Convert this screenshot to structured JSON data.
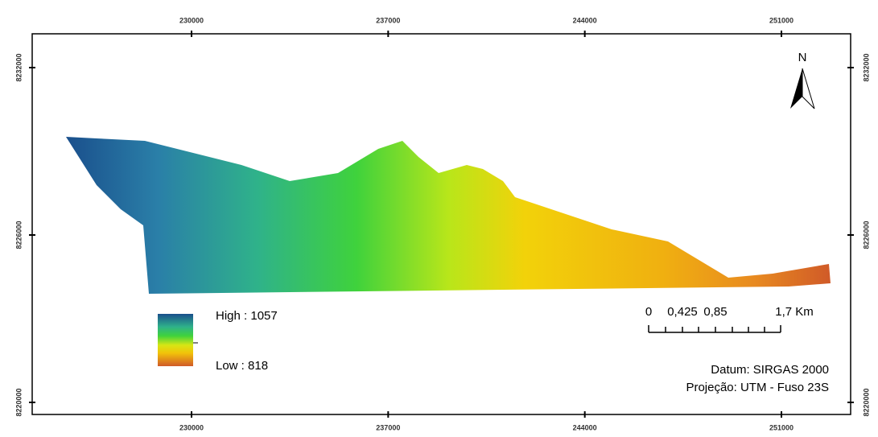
{
  "map": {
    "top_ticks": [
      230000,
      237000,
      244000,
      251000
    ],
    "left_ticks": [
      8232000,
      8226000,
      8220000
    ],
    "north": "N",
    "legend": {
      "high": "High : 1057",
      "low": "Low : 818"
    },
    "scale_bar": {
      "labels": [
        "0",
        "0,425",
        "0,85",
        "1,7 Km"
      ]
    },
    "datum": "Datum: SIRGAS 2000",
    "projection": "Projeção: UTM - Fuso 23S"
  }
}
